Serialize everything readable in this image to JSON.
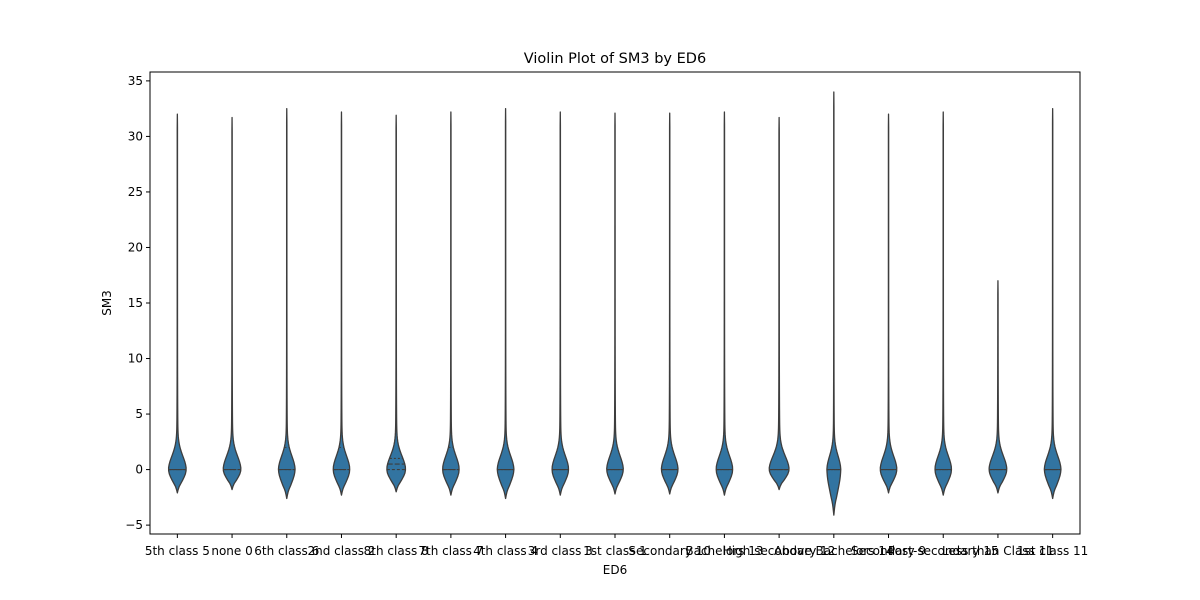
{
  "chart_data": {
    "type": "violin",
    "title": "Violin Plot of SM3 by ED6",
    "xlabel": "ED6",
    "ylabel": "SM3",
    "ylim": [
      -5.8,
      35.8
    ],
    "yticks": [
      -5,
      0,
      5,
      10,
      15,
      20,
      25,
      30,
      35
    ],
    "grid": false,
    "fill_color": "#3274a1",
    "edge_color": "#3d3d3d",
    "inner": "quartile",
    "categories": [
      "5th class 5",
      "none 0",
      "6th class 6",
      "2nd class 2",
      "8th class 8",
      "7th class 7",
      "4th class 4",
      "3rd class 3",
      "1st class 1",
      "Secondary 10",
      "Bachelors 13",
      "High secondary 12",
      "Above Bachelors 14",
      "Secondary 9",
      "Post-secondary 15",
      "Less than Class 11",
      "1st class 11"
    ],
    "series": [
      {
        "category": "5th class 5",
        "min": -2.1,
        "max": 32.0,
        "q1": 0.0,
        "median": 0.0,
        "q3": 0.0,
        "peak_width": 0.32
      },
      {
        "category": "none 0",
        "min": -1.8,
        "max": 31.7,
        "q1": 0.0,
        "median": 0.0,
        "q3": 4.0,
        "peak_width": 0.32
      },
      {
        "category": "6th class 6",
        "min": -2.6,
        "max": 32.5,
        "q1": 0.0,
        "median": 0.0,
        "q3": 2.0,
        "peak_width": 0.3
      },
      {
        "category": "2nd class 2",
        "min": -2.3,
        "max": 32.2,
        "q1": 0.0,
        "median": 0.0,
        "q3": 2.0,
        "peak_width": 0.3
      },
      {
        "category": "8th class 8",
        "min": -2.0,
        "max": 31.9,
        "q1": 0.0,
        "median": 0.5,
        "q3": 1.0,
        "peak_width": 0.34
      },
      {
        "category": "7th class 7",
        "min": -2.3,
        "max": 32.2,
        "q1": 0.0,
        "median": 0.0,
        "q3": 2.0,
        "peak_width": 0.3
      },
      {
        "category": "4th class 4",
        "min": -2.6,
        "max": 32.5,
        "q1": 0.0,
        "median": 0.0,
        "q3": 0.0,
        "peak_width": 0.3
      },
      {
        "category": "3rd class 3",
        "min": -2.3,
        "max": 32.2,
        "q1": 0.0,
        "median": 0.0,
        "q3": 0.0,
        "peak_width": 0.3
      },
      {
        "category": "1st class 1",
        "min": -2.2,
        "max": 32.1,
        "q1": 0.0,
        "median": 0.0,
        "q3": 0.0,
        "peak_width": 0.3
      },
      {
        "category": "Secondary 10",
        "min": -2.2,
        "max": 32.1,
        "q1": 0.0,
        "median": 0.0,
        "q3": 0.0,
        "peak_width": 0.3
      },
      {
        "category": "Bachelors 13",
        "min": -2.3,
        "max": 32.2,
        "q1": 0.0,
        "median": 0.0,
        "q3": 0.0,
        "peak_width": 0.3
      },
      {
        "category": "High secondary 12",
        "min": -1.8,
        "max": 31.7,
        "q1": 0.0,
        "median": 0.0,
        "q3": 0.0,
        "peak_width": 0.36
      },
      {
        "category": "Above Bachelors 14",
        "min": -4.1,
        "max": 34.0,
        "q1": 0.0,
        "median": 0.0,
        "q3": 0.0,
        "peak_width": 0.25
      },
      {
        "category": "Secondary 9",
        "min": -2.1,
        "max": 32.0,
        "q1": 0.0,
        "median": 0.0,
        "q3": 0.0,
        "peak_width": 0.3
      },
      {
        "category": "Post-secondary 15",
        "min": -2.3,
        "max": 32.2,
        "q1": 0.0,
        "median": 0.0,
        "q3": 0.0,
        "peak_width": 0.3
      },
      {
        "category": "Less than Class 11",
        "min": -2.1,
        "max": 17.0,
        "q1": 0.0,
        "median": 0.0,
        "q3": 0.0,
        "peak_width": 0.32
      },
      {
        "category": "1st class 11",
        "min": -2.6,
        "max": 32.5,
        "q1": 0.0,
        "median": 0.0,
        "q3": 0.0,
        "peak_width": 0.3
      }
    ]
  }
}
